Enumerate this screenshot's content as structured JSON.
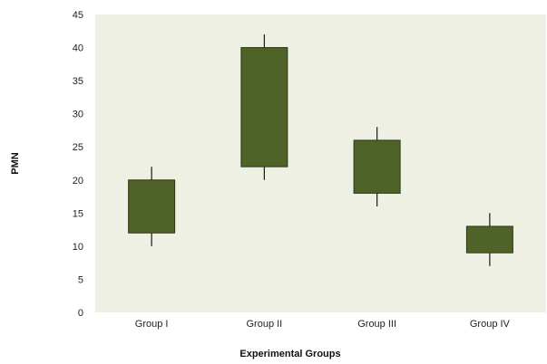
{
  "chart_data": {
    "type": "box",
    "title": "",
    "xlabel": "Experimental Groups",
    "ylabel": "PMN",
    "ylim": [
      0,
      45
    ],
    "yticks": [
      0,
      5,
      10,
      15,
      20,
      25,
      30,
      35,
      40,
      45
    ],
    "grid": false,
    "categories": [
      "Group I",
      "Group II",
      "Group III",
      "Group IV"
    ],
    "boxes": [
      {
        "min": 10,
        "q1": 12,
        "q3": 20,
        "max": 22
      },
      {
        "min": 20,
        "q1": 22,
        "q3": 40,
        "max": 42
      },
      {
        "min": 16,
        "q1": 18,
        "q3": 26,
        "max": 28
      },
      {
        "min": 7,
        "q1": 9,
        "q3": 13,
        "max": 15
      }
    ],
    "colors": {
      "plot_background": "#eef0e4",
      "box_fill": "#4f6228",
      "box_stroke": "#2c3a14",
      "whisker": "#1a1a1a"
    }
  }
}
